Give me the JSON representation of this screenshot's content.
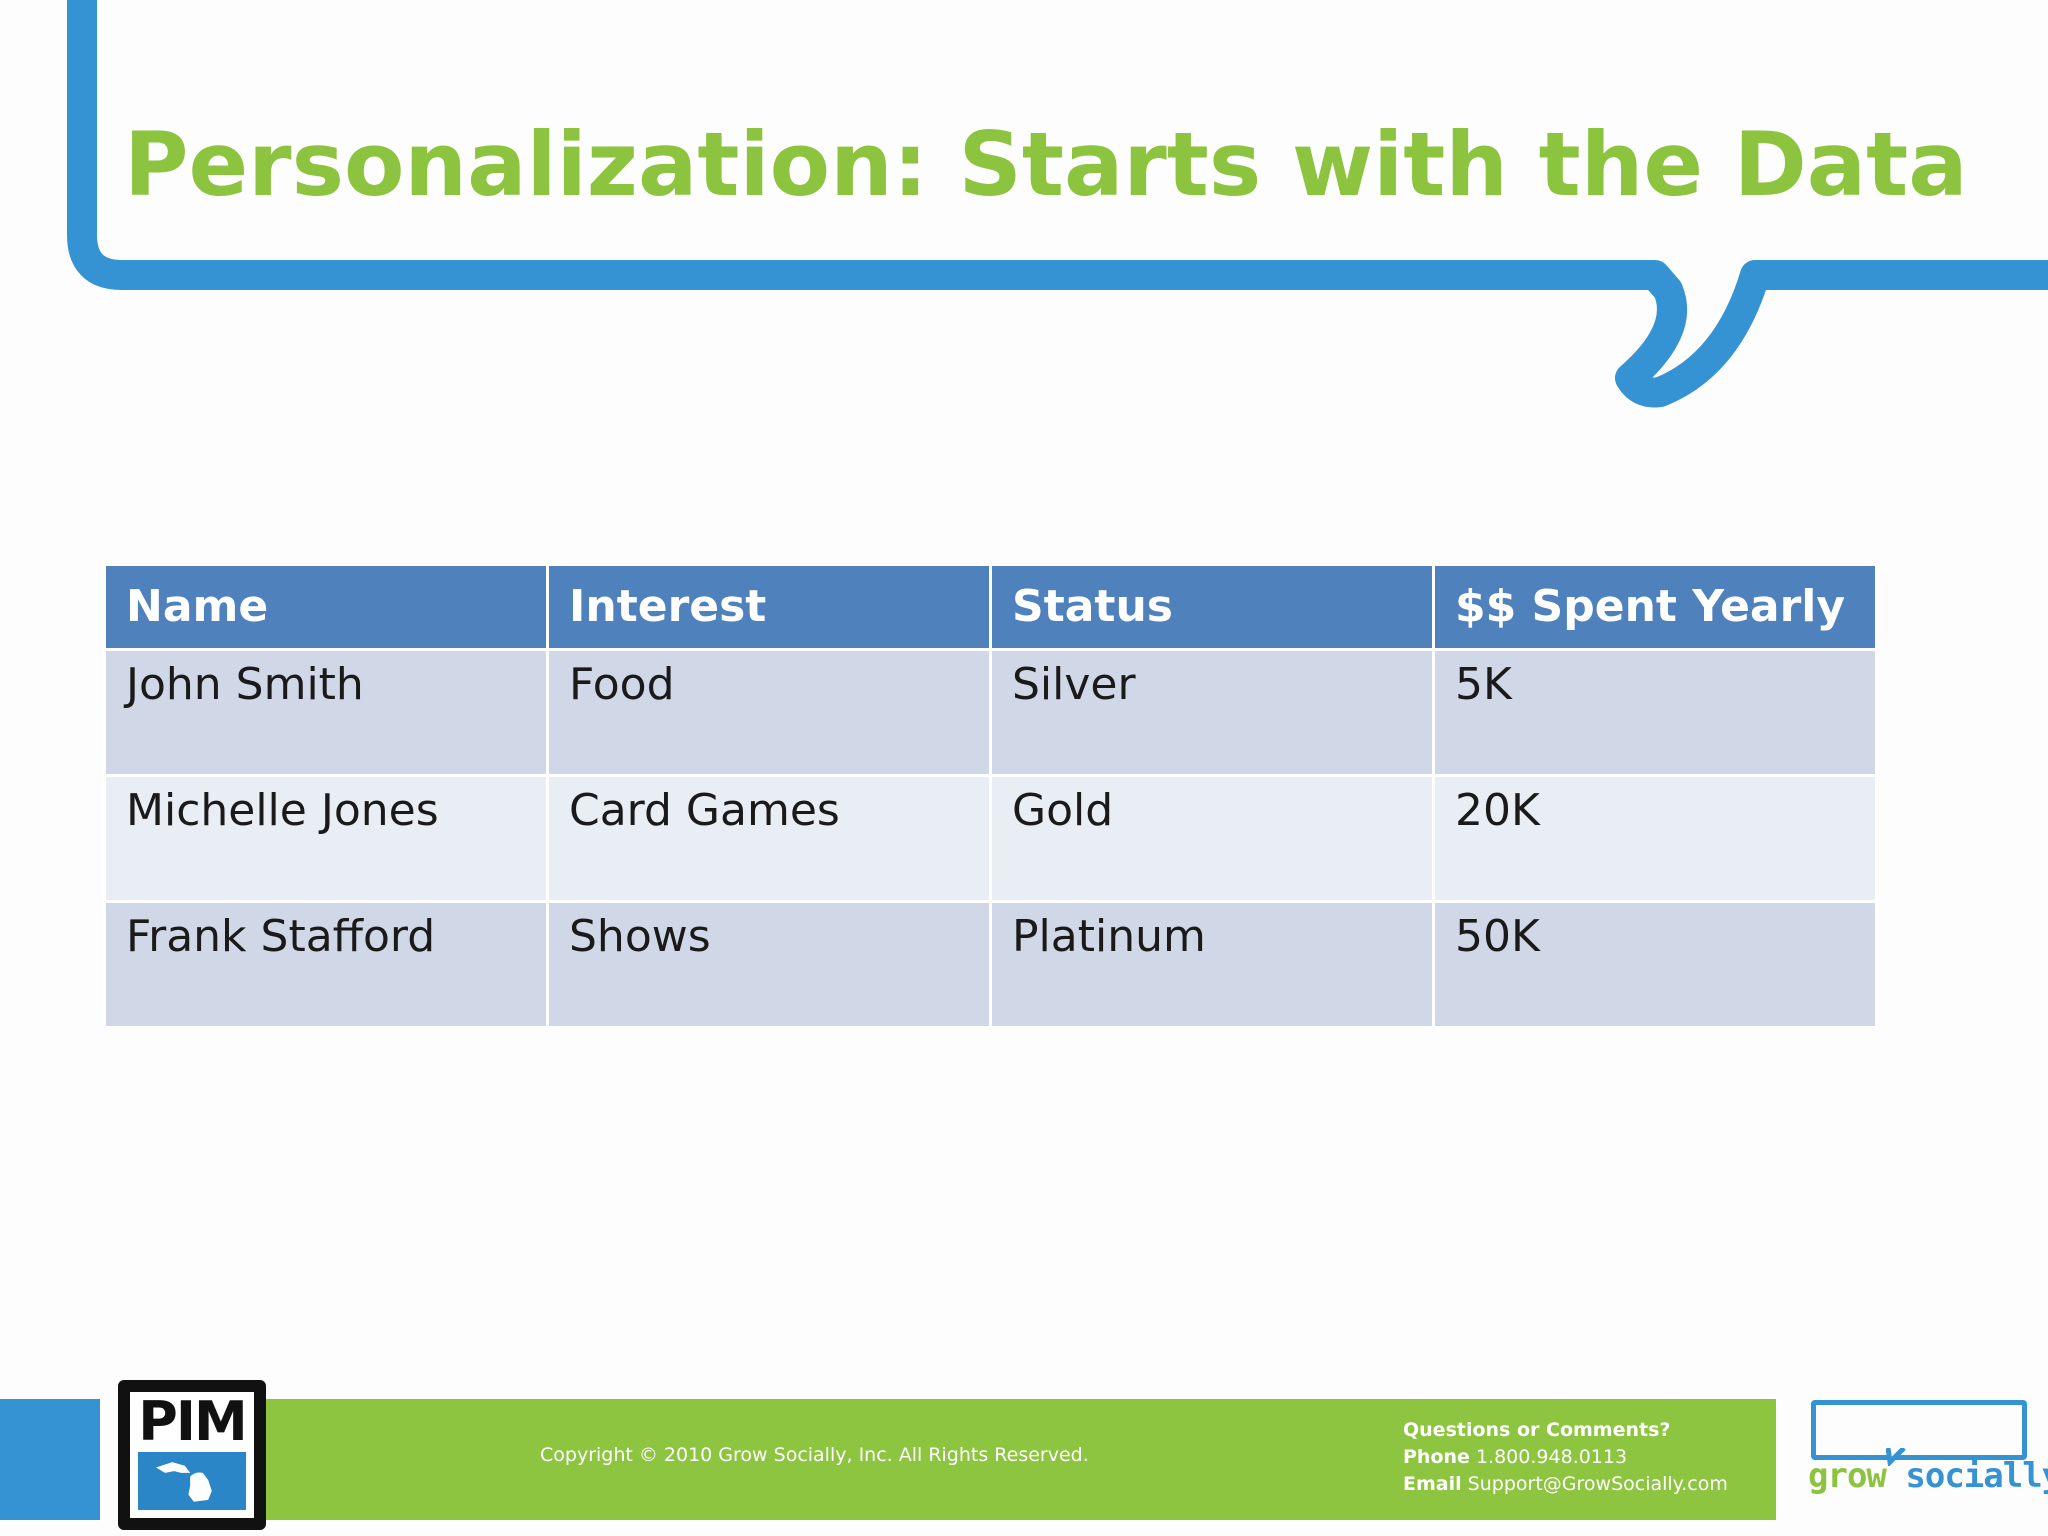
{
  "slide": {
    "title": "Personalization: Starts with the Data"
  },
  "table": {
    "headers": [
      "Name",
      "Interest",
      "Status",
      "$$ Spent Yearly"
    ],
    "rows": [
      [
        "John Smith",
        "Food",
        "Silver",
        "5K"
      ],
      [
        "Michelle Jones",
        "Card Games",
        "Gold",
        "20K"
      ],
      [
        "Frank Stafford",
        "Shows",
        "Platinum",
        "50K"
      ]
    ]
  },
  "footer": {
    "copyright": "Copyright © 2010 Grow Socially, Inc. All Rights Reserved.",
    "questions": "Questions or Comments?",
    "phone_label": "Phone",
    "phone_value": "1.800.948.0113",
    "email_label": "Email",
    "email_value": "Support@GrowSocially.com"
  },
  "logos": {
    "pim_text": "PIM",
    "gs_grow": "grow",
    "gs_socially": "socially"
  },
  "colors": {
    "title_green": "#8cc43f",
    "frame_blue": "#3592d3",
    "header_blue": "#4f81bd",
    "row_odd": "#d0d8e8",
    "row_even": "#e9edf4",
    "footer_green": "#8dc540"
  }
}
